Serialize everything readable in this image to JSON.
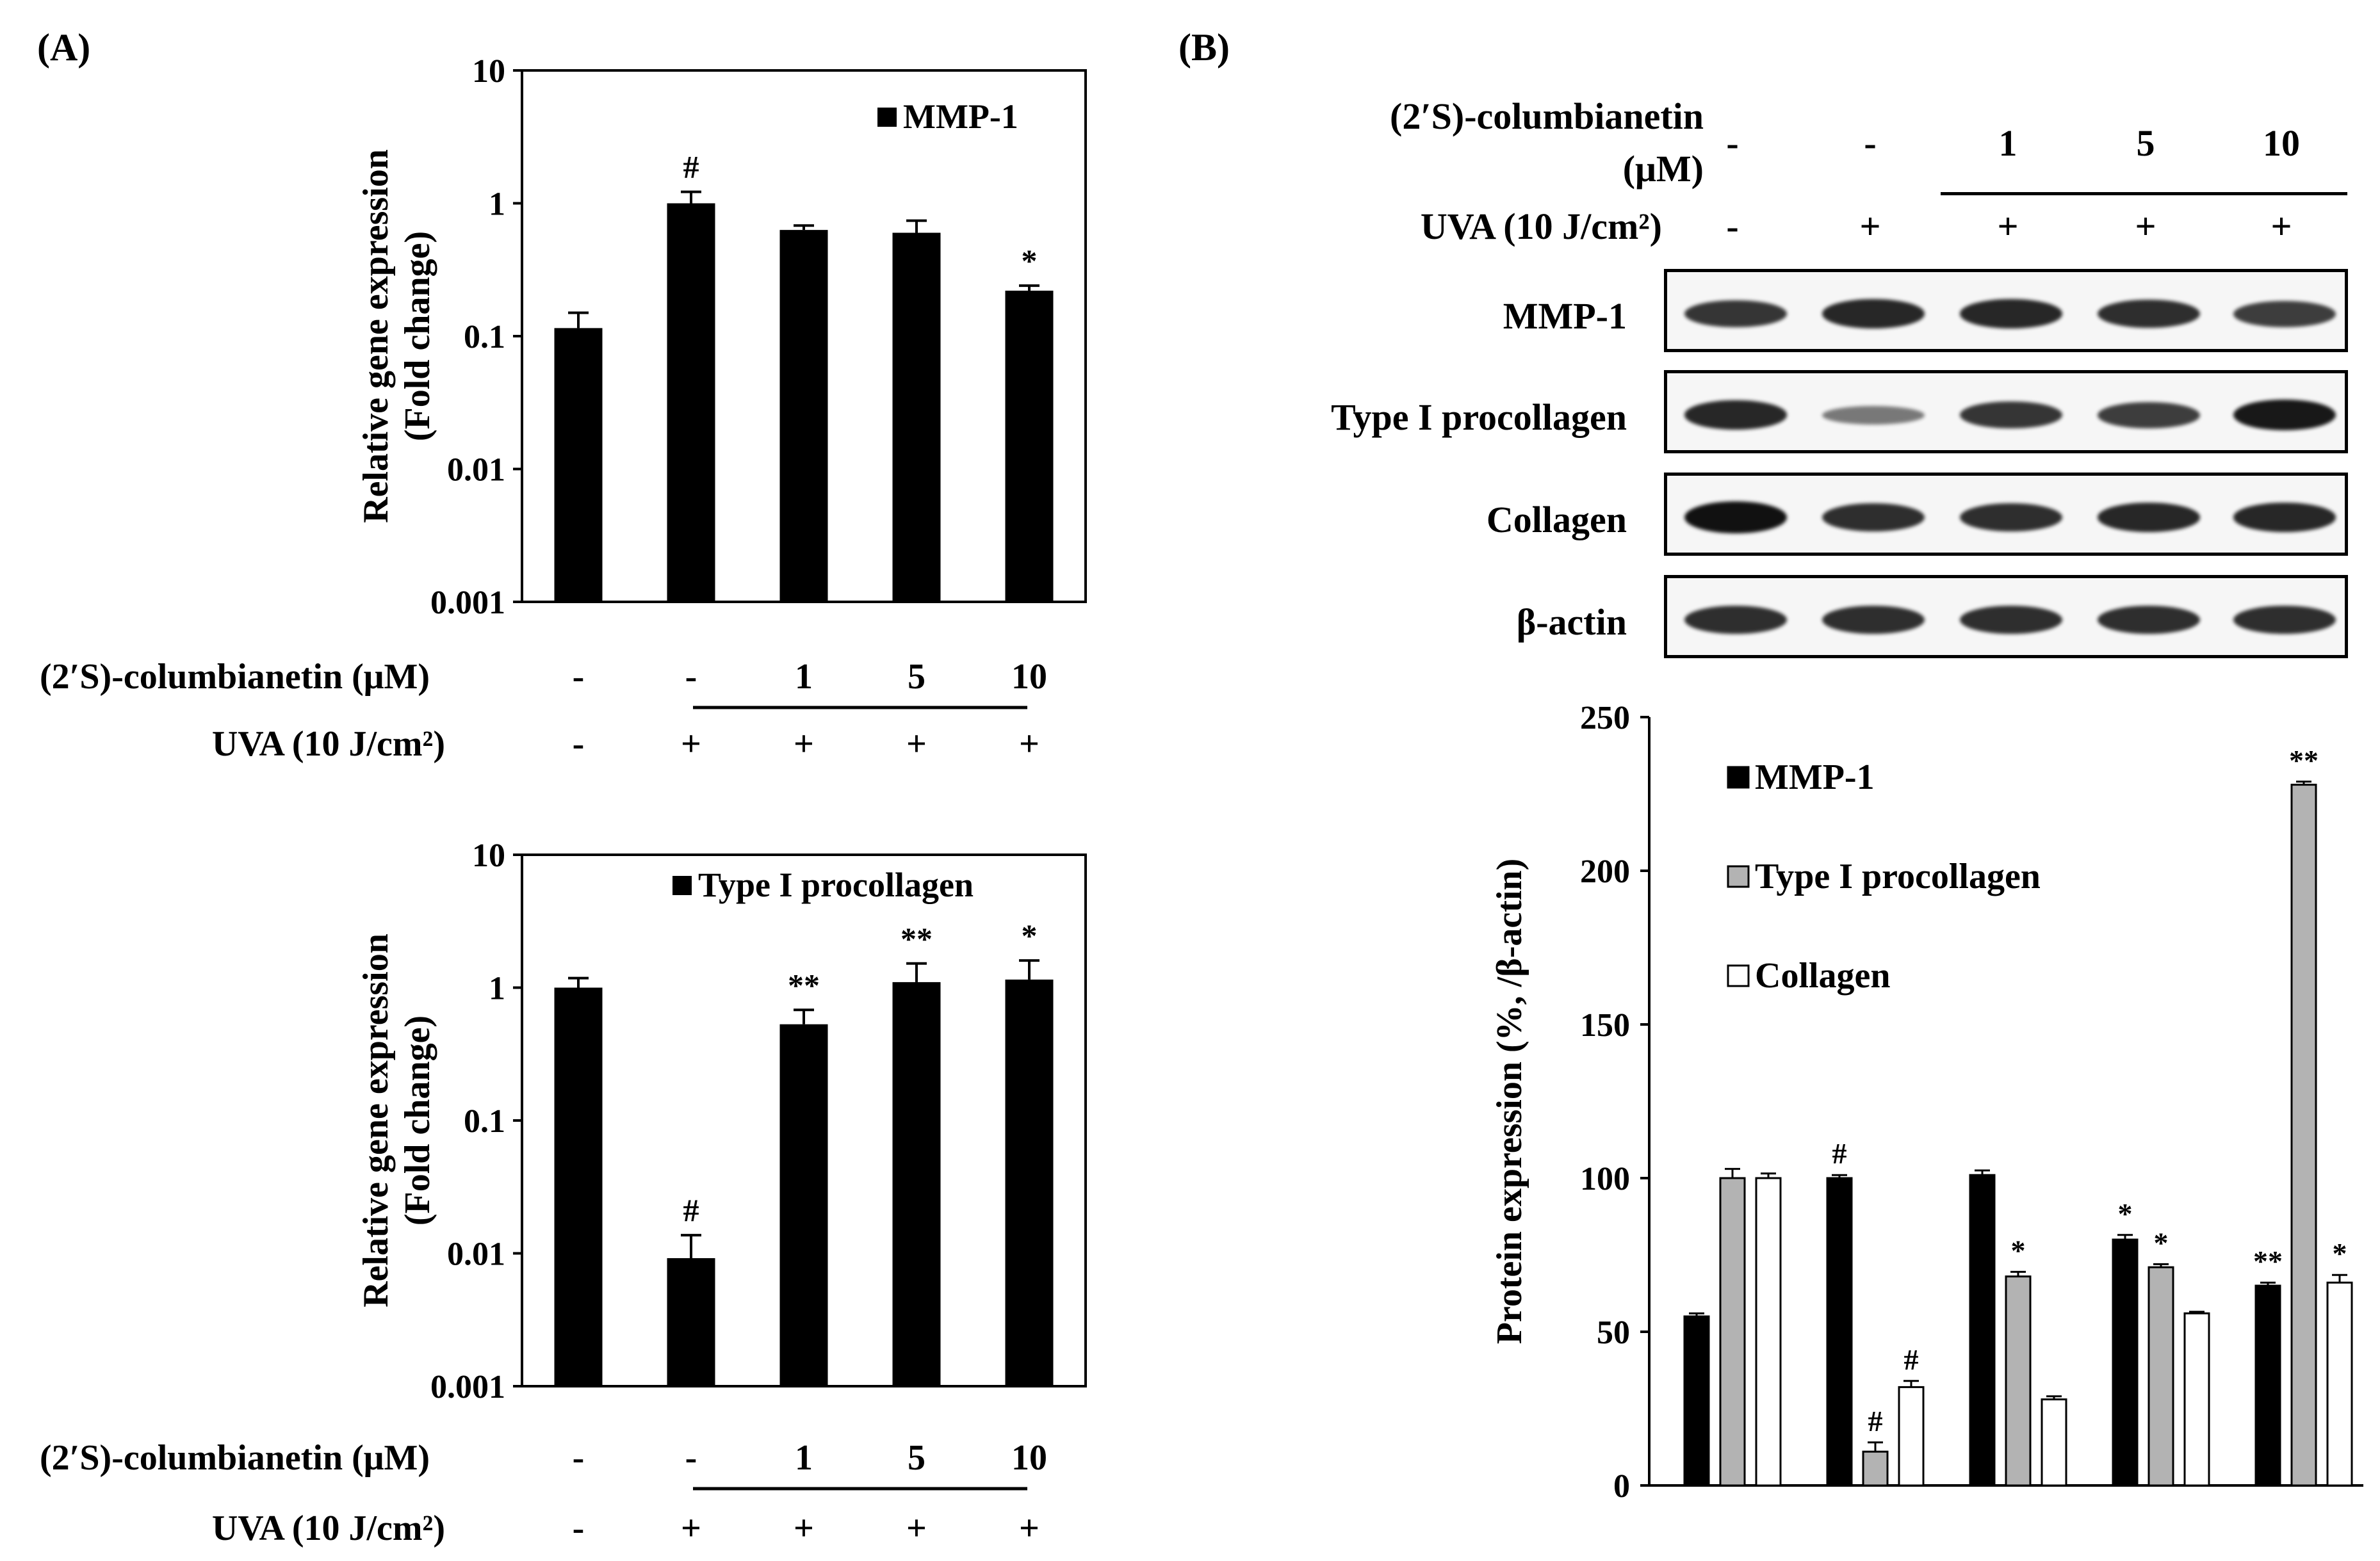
{
  "panel_a_label": "(A)",
  "panel_b_label": "(B)",
  "treatment": {
    "compound_label": "(2′S)-columbianetin  (μM)",
    "compound_label_b1": "(2′S)-columbianetin",
    "compound_label_b2": "(μM)",
    "compound_values": [
      "-",
      "-",
      "1",
      "5",
      "10"
    ],
    "uva_label": "UVA (10 J/cm²)",
    "uva_values": [
      "-",
      "+",
      "+",
      "+",
      "+"
    ]
  },
  "blots": {
    "labels": [
      "MMP-1",
      "Type I procollagen",
      "Collagen",
      "β-actin"
    ],
    "band_intensity": [
      [
        0.75,
        0.85,
        0.85,
        0.8,
        0.7
      ],
      [
        0.85,
        0.3,
        0.75,
        0.7,
        0.95
      ],
      [
        1.0,
        0.8,
        0.8,
        0.85,
        0.85
      ],
      [
        0.8,
        0.8,
        0.8,
        0.8,
        0.8
      ]
    ]
  },
  "chart_data": [
    {
      "type": "bar",
      "scale": "log",
      "ylabel": "Relative gene expression",
      "ylabel2": "(Fold change)",
      "yticks": [
        "10",
        "1",
        "0.1",
        "0.01",
        "0.001"
      ],
      "ylim": [
        0.001,
        10
      ],
      "series": [
        {
          "name": "MMP-1",
          "values": [
            0.115,
            1.0,
            0.63,
            0.6,
            0.22
          ],
          "errors": [
            0.035,
            0.22,
            0.05,
            0.14,
            0.02
          ]
        }
      ],
      "annotations": [
        "",
        "#",
        "",
        "",
        "*"
      ],
      "color": "#000000"
    },
    {
      "type": "bar",
      "scale": "log",
      "ylabel": "Relative gene expression",
      "ylabel2": "(Fold change)",
      "yticks": [
        "10",
        "1",
        "0.1",
        "0.01",
        "0.001"
      ],
      "ylim": [
        0.001,
        10
      ],
      "series": [
        {
          "name": "Type I procollagen",
          "values": [
            1.0,
            0.0092,
            0.53,
            1.1,
            1.15
          ],
          "errors": [
            0.18,
            0.0045,
            0.15,
            0.42,
            0.45
          ]
        }
      ],
      "annotations": [
        "",
        "#",
        "**",
        "**",
        "*"
      ],
      "color": "#000000"
    },
    {
      "type": "bar",
      "scale": "linear",
      "ylabel": "Protein expression (%, /β-actin)",
      "yticks": [
        "250",
        "200",
        "150",
        "100",
        "50",
        "0"
      ],
      "ylim": [
        0,
        250
      ],
      "series": [
        {
          "name": "MMP-1",
          "color": "#000000",
          "values": [
            55,
            100,
            101,
            80,
            65
          ],
          "errors": [
            1,
            1,
            1.5,
            1.5,
            1
          ],
          "annotations": [
            "",
            "#",
            "",
            "*",
            "**"
          ]
        },
        {
          "name": "Type I procollagen",
          "color": "#b3b3b3",
          "values": [
            100,
            11,
            68,
            71,
            228
          ],
          "errors": [
            3,
            3,
            1.5,
            1,
            1
          ],
          "annotations": [
            "",
            "#",
            "*",
            "*",
            "**"
          ]
        },
        {
          "name": "Collagen",
          "color": "#ffffff",
          "values": [
            100,
            32,
            28,
            56,
            66
          ],
          "errors": [
            1.5,
            2,
            1,
            0.5,
            2.5
          ],
          "annotations": [
            "",
            "#",
            "",
            "",
            "*"
          ]
        }
      ]
    }
  ]
}
